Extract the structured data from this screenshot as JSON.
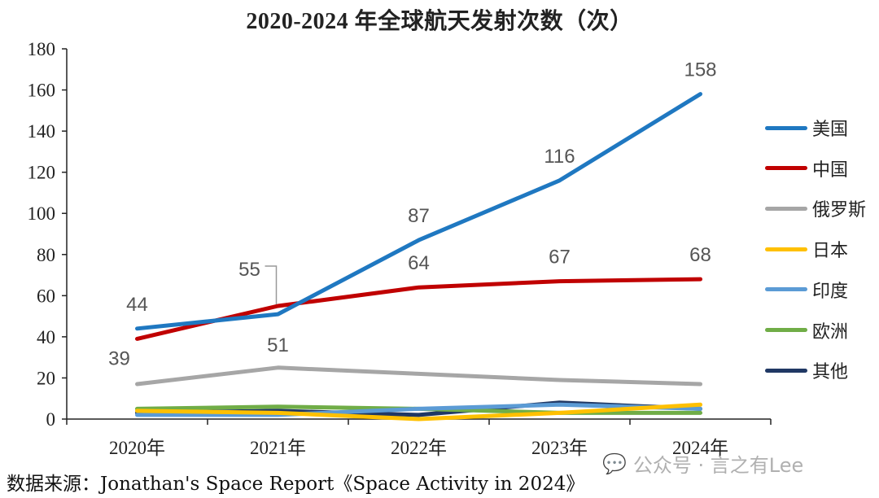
{
  "chart_data": {
    "type": "line",
    "title": "2020-2024 年全球航天发射次数（次）",
    "categories": [
      "2020年",
      "2021年",
      "2022年",
      "2023年",
      "2024年"
    ],
    "ylim": [
      0,
      180
    ],
    "yticks": [
      "0",
      "20",
      "40",
      "60",
      "80",
      "100",
      "120",
      "140",
      "160",
      "180"
    ],
    "grid": false,
    "legend_position": "right",
    "series": [
      {
        "name": "美国",
        "color": "#1f78c1",
        "values": [
          44,
          51,
          87,
          116,
          158
        ],
        "labels": [
          "44",
          "51",
          "87",
          "116",
          "158"
        ]
      },
      {
        "name": "中国",
        "color": "#c00000",
        "values": [
          39,
          55,
          64,
          67,
          68
        ],
        "labels": [
          "39",
          "55",
          "64",
          "67",
          "68"
        ]
      },
      {
        "name": "俄罗斯",
        "color": "#a6a6a6",
        "values": [
          17,
          25,
          22,
          19,
          17
        ]
      },
      {
        "name": "日本",
        "color": "#ffc000",
        "values": [
          4,
          3,
          0,
          3,
          7
        ]
      },
      {
        "name": "印度",
        "color": "#5b9bd5",
        "values": [
          2,
          2,
          5,
          7,
          5
        ]
      },
      {
        "name": "欧洲",
        "color": "#70ad47",
        "values": [
          5,
          6,
          5,
          3,
          3
        ]
      },
      {
        "name": "其他",
        "color": "#203864",
        "values": [
          3,
          4,
          2,
          8,
          5
        ]
      }
    ]
  },
  "source_text": "数据来源：Jonathan's Space Report《Space Activity in 2024》",
  "watermark": {
    "icon": "wechat-icon",
    "text": "公众号 · 言之有Lee"
  }
}
